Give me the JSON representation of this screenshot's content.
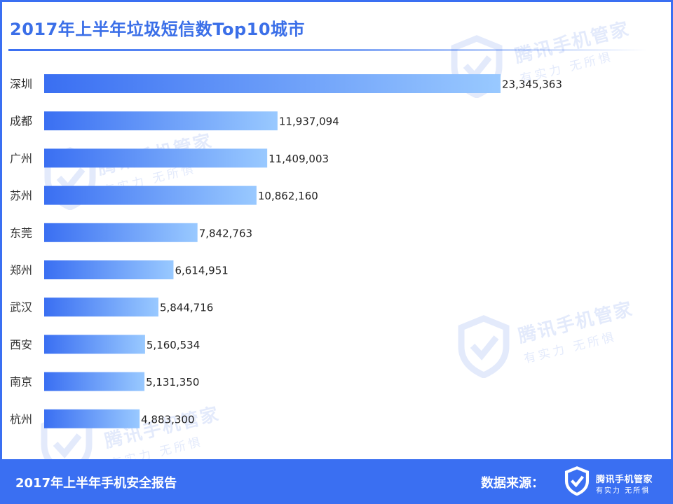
{
  "title": "2017年上半年垃圾短信数Top10城市",
  "watermark": {
    "brand": "腾讯手机管家",
    "slogan": "有实力  无所惧"
  },
  "footer": {
    "report_title": "2017年上半年手机安全报告",
    "source_label": "数据来源：",
    "brand": "腾讯手机管家",
    "slogan": "有实力  无所惧"
  },
  "colors": {
    "accent": "#3a6ff2",
    "bar_start": "#3a6ff2",
    "bar_end": "#99c9ff"
  },
  "chart_data": {
    "type": "bar",
    "orientation": "horizontal",
    "categories": [
      "深圳",
      "成都",
      "广州",
      "苏州",
      "东莞",
      "郑州",
      "武汉",
      "西安",
      "南京",
      "杭州"
    ],
    "values": [
      23345363,
      11937094,
      11409003,
      10862160,
      7842763,
      6614951,
      5844716,
      5160534,
      5131350,
      4883300
    ],
    "value_labels": [
      "23,345,363",
      "11,937,094",
      "11,409,003",
      "10,862,160",
      "7,842,763",
      "6,614,951",
      "5,844,716",
      "5,160,534",
      "5,131,350",
      "4,883,300"
    ],
    "xlim": [
      0,
      23345363
    ],
    "grid": false,
    "legend": "none"
  }
}
